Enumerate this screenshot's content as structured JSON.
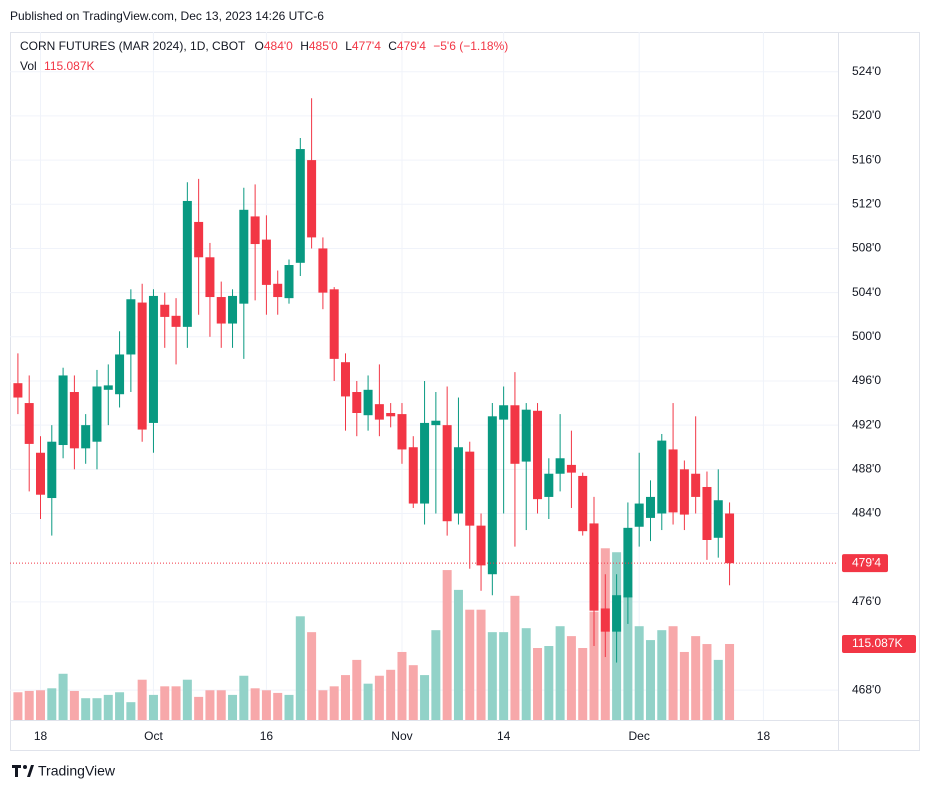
{
  "published": "Published on TradingView.com, Dec 13, 2023 14:26 UTC-6",
  "footer": "TradingView",
  "header": {
    "symbol": "CORN FUTURES (MAR 2024), 1D, CBOT",
    "ohlc": [
      {
        "key": "O",
        "value": "484'0"
      },
      {
        "key": "H",
        "value": "485'0"
      },
      {
        "key": "L",
        "value": "477'4"
      },
      {
        "key": "C",
        "value": "479'4"
      }
    ],
    "change": "−5'6 (−1.18%)",
    "vol_key": "Vol",
    "vol_value": "115.087K"
  },
  "chart_data": {
    "type": "candlestick",
    "x": [
      0,
      1,
      2,
      3,
      4,
      5,
      6,
      7,
      8,
      9,
      10,
      11,
      12,
      13,
      14,
      15,
      16,
      17,
      18,
      19,
      20,
      21,
      22,
      23,
      24,
      25,
      26,
      27,
      28,
      29,
      30,
      31,
      32,
      33,
      34,
      35,
      36,
      37,
      38,
      39,
      40,
      41,
      42,
      43,
      44,
      45,
      46,
      47,
      48,
      49,
      50,
      51,
      52,
      53,
      54,
      55,
      56,
      57,
      58,
      59,
      60,
      61,
      62,
      63
    ],
    "open": [
      495.8,
      494,
      489.5,
      485.4,
      490.2,
      495,
      489.9,
      490.5,
      495.2,
      494.8,
      498.4,
      503.1,
      492.2,
      502.9,
      501.9,
      500.9,
      510.4,
      507.2,
      503.6,
      501.2,
      503,
      510.9,
      508.8,
      504.8,
      503.5,
      506.7,
      516,
      508,
      504.3,
      497.7,
      495,
      492.9,
      493.9,
      493.1,
      493,
      490,
      484.9,
      492,
      492,
      484,
      489.6,
      482.9,
      478.5,
      492.5,
      493.8,
      488.7,
      493.3,
      485.5,
      487.6,
      488.4,
      487.4,
      483.1,
      475.4,
      473.3,
      476.4,
      482.8,
      483.6,
      484,
      489.8,
      488,
      487.6,
      486.4,
      481.8,
      484
    ],
    "high": [
      498.5,
      496.5,
      491,
      492,
      497.2,
      496.5,
      493,
      497,
      497.5,
      500.5,
      504.3,
      504.8,
      504.3,
      504,
      503.5,
      514,
      514.3,
      508.5,
      505,
      504.3,
      513.5,
      513.8,
      511,
      506,
      507,
      518,
      521.6,
      509,
      504.5,
      498.5,
      496,
      496.5,
      497.5,
      494,
      494,
      491,
      496,
      495,
      495.5,
      494.5,
      490.5,
      484,
      494,
      495.5,
      496.8,
      494,
      494,
      489,
      493,
      491.5,
      487.7,
      485.5,
      478.5,
      478.5,
      485,
      489.5,
      487,
      491.2,
      494,
      488.8,
      492.8,
      487.8,
      488,
      485
    ],
    "low": [
      493,
      486,
      483.5,
      482,
      489,
      488,
      488.5,
      488,
      492,
      493.6,
      495,
      490.5,
      489.5,
      499,
      497.5,
      499,
      502,
      500,
      499,
      499,
      498,
      503.3,
      502,
      502,
      503,
      505.5,
      508,
      502.5,
      496,
      491.5,
      491,
      491.5,
      491,
      491.8,
      488.5,
      484.5,
      483,
      484,
      482,
      483,
      479,
      477,
      476.6,
      484,
      481,
      482.5,
      484,
      483.5,
      486,
      484.5,
      482,
      472,
      471,
      470.5,
      474,
      481,
      481.5,
      482.5,
      483,
      482.5,
      484,
      479.8,
      480,
      477.5
    ],
    "close": [
      494.5,
      490.3,
      485.7,
      490.5,
      496.5,
      489.9,
      492,
      495.5,
      495.6,
      498.4,
      503.4,
      491.6,
      503.7,
      501.8,
      500.9,
      512.3,
      507.2,
      503.6,
      501.2,
      503.7,
      511.5,
      508.4,
      504.7,
      503.6,
      506.5,
      517,
      509,
      504,
      498,
      494.6,
      493.1,
      495.2,
      492.5,
      492.8,
      489.8,
      484.9,
      492.2,
      492.4,
      483.3,
      490,
      482.9,
      479.3,
      492.8,
      493.8,
      488.5,
      493.4,
      485.3,
      487.6,
      489,
      487.7,
      482.4,
      475.2,
      473.3,
      476.6,
      482.7,
      484.9,
      485.5,
      490.6,
      484.1,
      483.9,
      485.5,
      481.6,
      485.2,
      479.5
    ],
    "volume": [
      42,
      44,
      45,
      48,
      70,
      44,
      33,
      33,
      38,
      42,
      27,
      61,
      38,
      51,
      51,
      61,
      35,
      45,
      45,
      38,
      67,
      48,
      45,
      41,
      38,
      157,
      133,
      45,
      51,
      68,
      91,
      55,
      67,
      76,
      103,
      83,
      68,
      136,
      227,
      197,
      167,
      167,
      133,
      133,
      188,
      139,
      109,
      112,
      142,
      127,
      109,
      164,
      260,
      254,
      188,
      142,
      121,
      136,
      142,
      103,
      127,
      115,
      91,
      115.087
    ],
    "volume_label": "115.087K",
    "last_price_label": "479'4",
    "up_color": "#089981",
    "down_color": "#f23645",
    "volume_up_color": "#92d2c8",
    "volume_down_color": "#f7a8aa",
    "xlim": [
      -0.7,
      72.6
    ],
    "xticks": [
      {
        "value": 2,
        "label": "18"
      },
      {
        "value": 12,
        "label": "Oct"
      },
      {
        "value": 22,
        "label": "16"
      },
      {
        "value": 34,
        "label": "Nov"
      },
      {
        "value": 43,
        "label": "14"
      },
      {
        "value": 55,
        "label": "Dec"
      },
      {
        "value": 66,
        "label": "18"
      }
    ],
    "ylim": [
      465.3,
      527.6
    ],
    "yticks": [
      {
        "value": 468,
        "label": "468'0"
      },
      {
        "value": 476,
        "label": "476'0"
      },
      {
        "value": 484,
        "label": "484'0"
      },
      {
        "value": 488,
        "label": "488'0"
      },
      {
        "value": 492,
        "label": "492'0"
      },
      {
        "value": 496,
        "label": "496'0"
      },
      {
        "value": 500,
        "label": "500'0"
      },
      {
        "value": 504,
        "label": "504'0"
      },
      {
        "value": 508,
        "label": "508'0"
      },
      {
        "value": 512,
        "label": "512'0"
      },
      {
        "value": 516,
        "label": "516'0"
      },
      {
        "value": 520,
        "label": "520'0"
      },
      {
        "value": 524,
        "label": "524'0"
      }
    ],
    "grid": true
  }
}
